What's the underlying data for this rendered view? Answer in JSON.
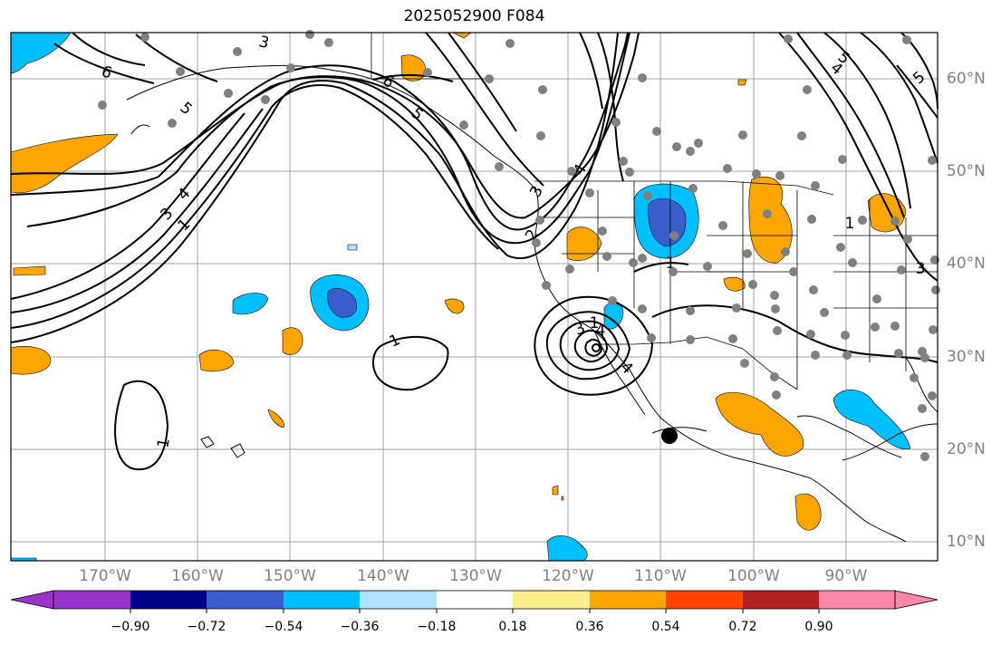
{
  "title": "2025052900 F084",
  "lat_labels": [
    {
      "text": "60°N",
      "lat": 60
    },
    {
      "text": "50°N",
      "lat": 50
    },
    {
      "text": "40°N",
      "lat": 40
    },
    {
      "text": "30°N",
      "lat": 30
    },
    {
      "text": "20°N",
      "lat": 20
    },
    {
      "text": "10°N",
      "lat": 10
    }
  ],
  "lon_labels": [
    {
      "text": "170°W",
      "lon": -170
    },
    {
      "text": "160°W",
      "lon": -160
    },
    {
      "text": "150°W",
      "lon": -150
    },
    {
      "text": "140°W",
      "lon": -140
    },
    {
      "text": "130°W",
      "lon": -130
    },
    {
      "text": "120°W",
      "lon": -120
    },
    {
      "text": "110°W",
      "lon": -110
    },
    {
      "text": "100°W",
      "lon": -100
    },
    {
      "text": "90°W",
      "lon": -90
    }
  ],
  "map_extent": {
    "lon_min": -180,
    "lon_max": -80,
    "lat_min": 8,
    "lat_max": 65
  },
  "colorbar": {
    "ticks": [
      "−0.90",
      "−0.72",
      "−0.54",
      "−0.36",
      "−0.18",
      "0.18",
      "0.36",
      "0.54",
      "0.72",
      "0.90"
    ],
    "colors": [
      "#9933cc",
      "#00008b",
      "#3a5fcd",
      "#00bfff",
      "#b0e2ff",
      "#ffffff",
      "#ffec8b",
      "#ffa500",
      "#ff4500",
      "#b22222",
      "#ff88aa"
    ],
    "extend": "both"
  },
  "contour_labels": [
    "6",
    "3",
    "5",
    "4",
    "3",
    "1",
    "6",
    "5",
    "4",
    "3",
    "2",
    "1",
    "1",
    "1",
    "1",
    "3",
    "4",
    "4",
    "5",
    "4",
    "5",
    "3",
    "1"
  ],
  "colors": {
    "contour": "#000000",
    "grid": "#a0a0a0",
    "stations": "#808080",
    "coast": "#000000"
  }
}
